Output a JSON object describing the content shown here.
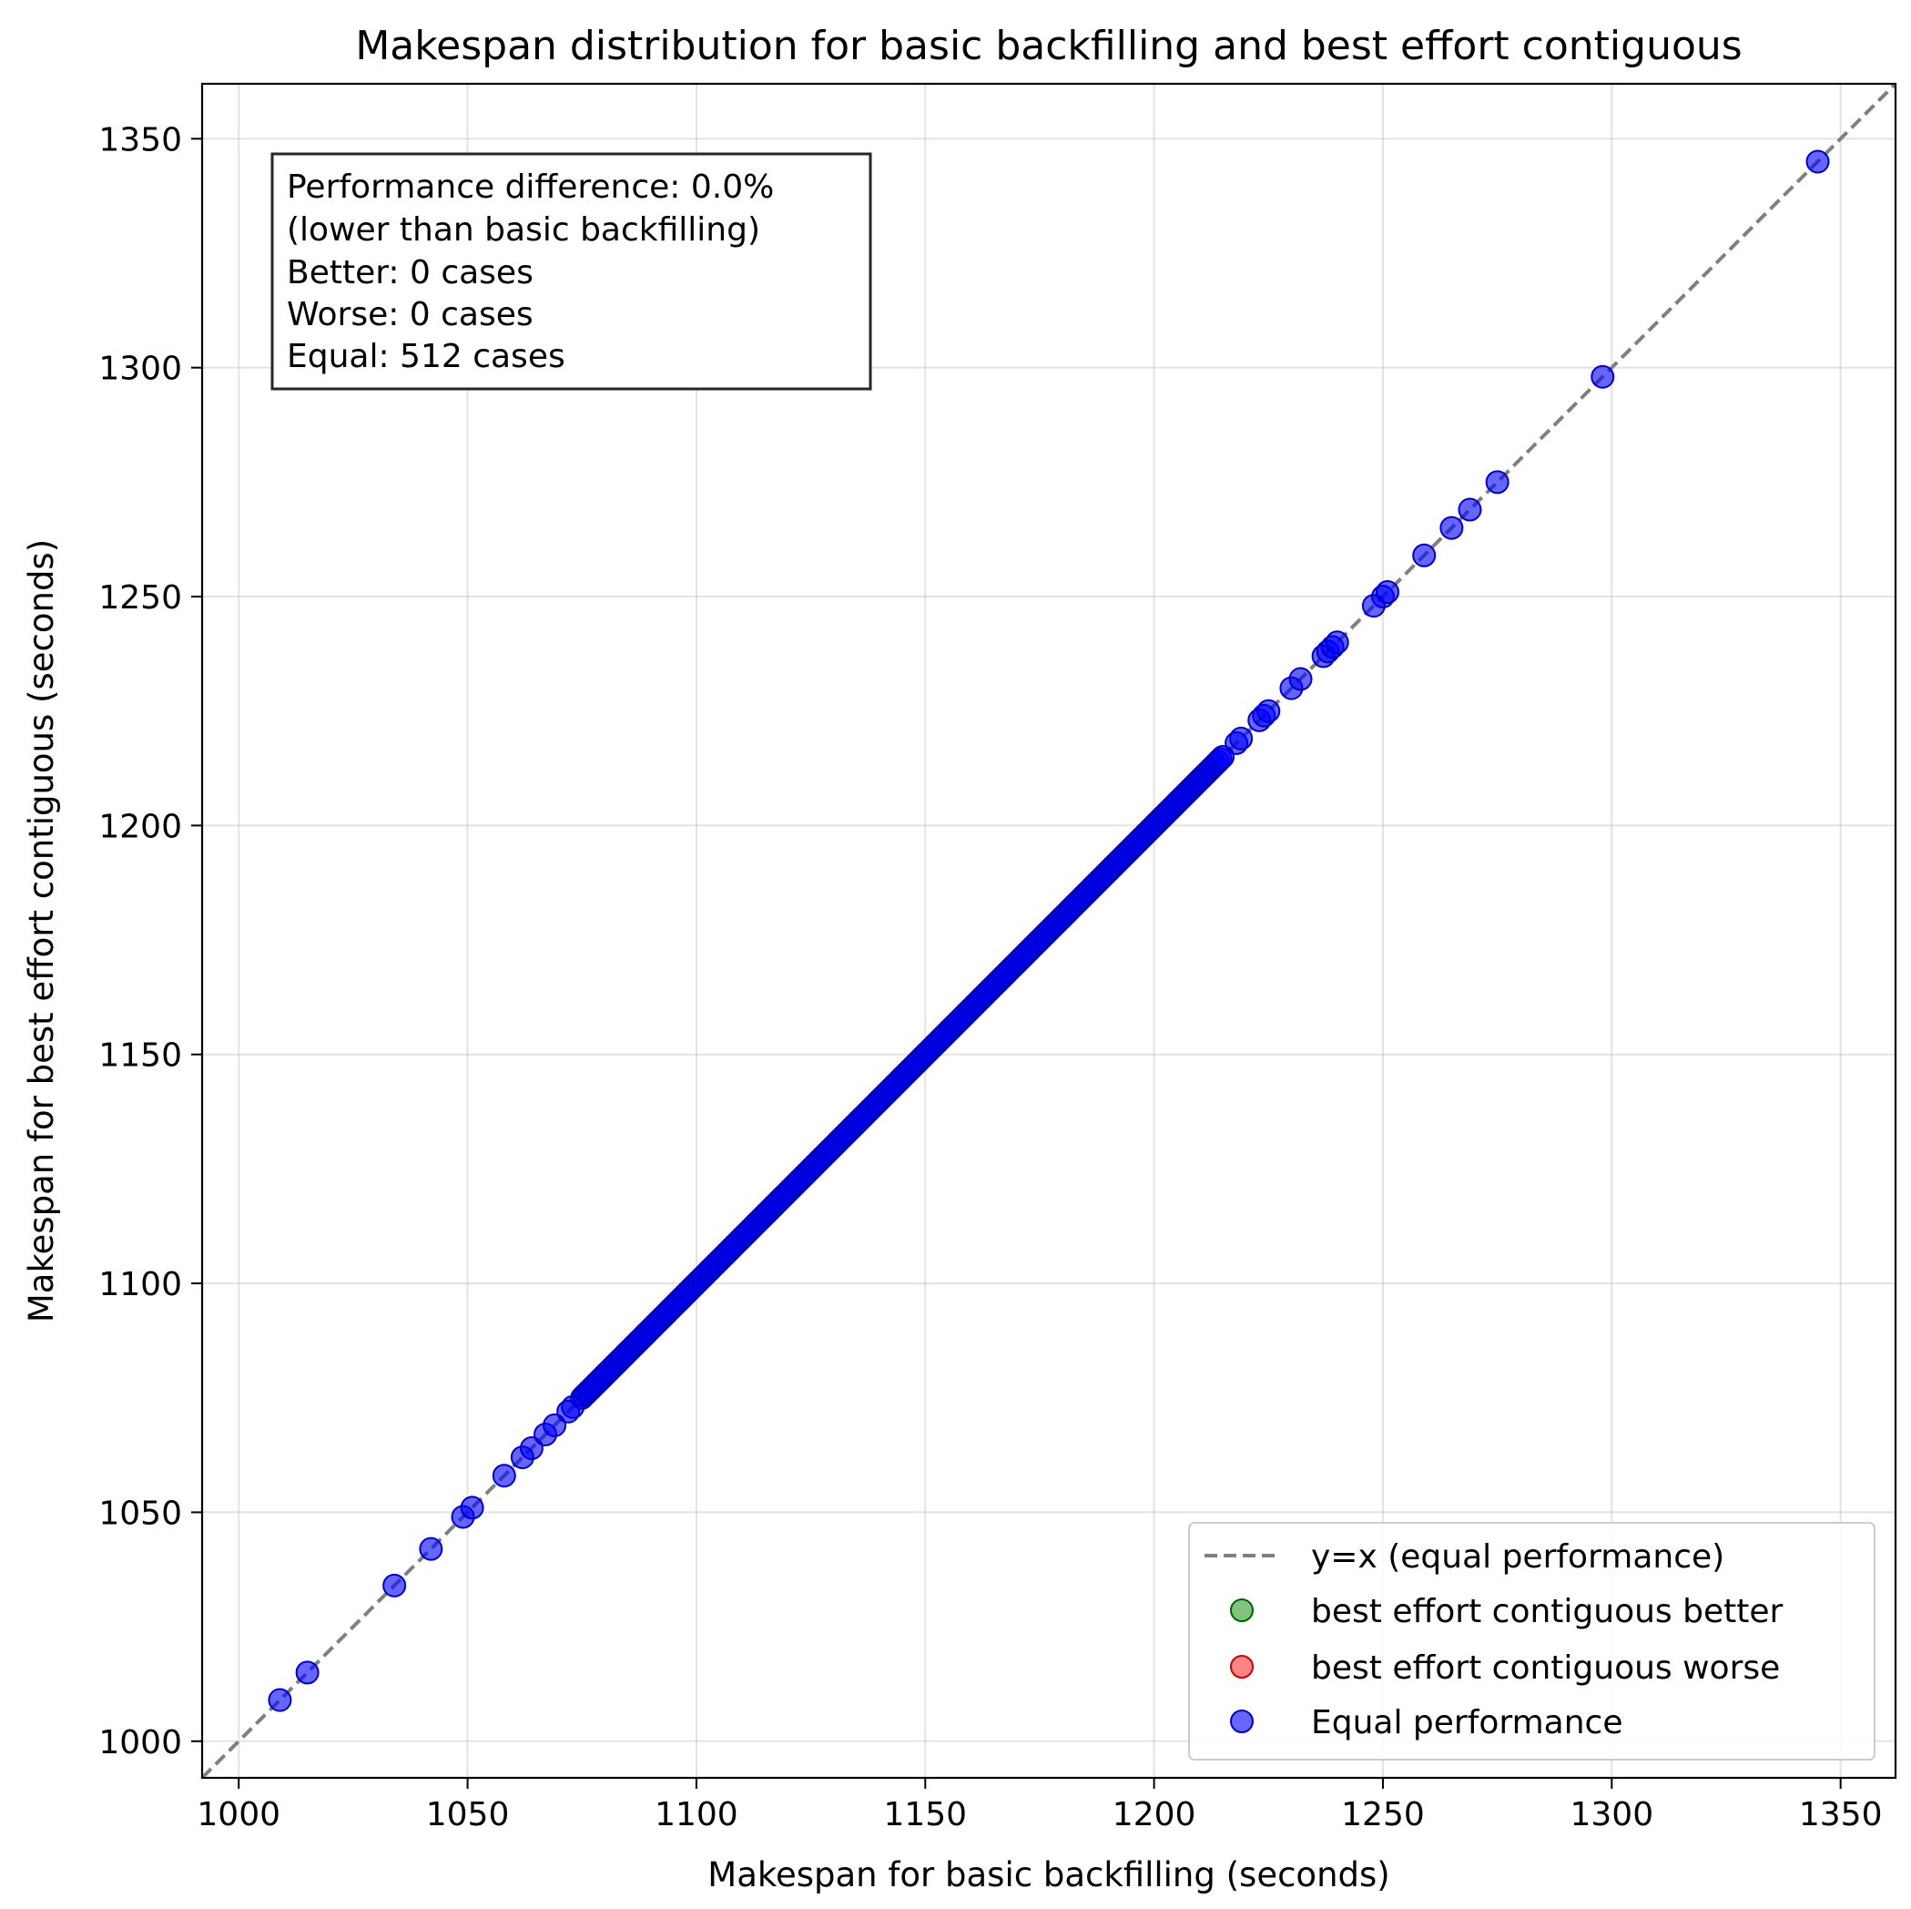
{
  "chart_data": {
    "type": "scatter",
    "title": "Makespan distribution for basic backfilling and best effort contiguous",
    "xlabel": "Makespan for basic backfilling (seconds)",
    "ylabel": "Makespan for best effort contiguous (seconds)",
    "xlim": [
      992,
      1362
    ],
    "ylim": [
      992,
      1362
    ],
    "xticks": [
      1000,
      1050,
      1100,
      1150,
      1200,
      1250,
      1300,
      1350
    ],
    "yticks": [
      1000,
      1050,
      1100,
      1150,
      1200,
      1250,
      1300,
      1350
    ],
    "grid": true,
    "legend_position": "lower-right",
    "reference_line": {
      "label": "y=x (equal performance)",
      "color": "#808080",
      "style": "dashed"
    },
    "series": [
      {
        "name": "best effort contiguous better",
        "color": "#2a9d2a",
        "points": []
      },
      {
        "name": "best effort contiguous worse",
        "color": "#ff3333",
        "points": []
      },
      {
        "name": "Equal performance",
        "color": "#0000ff",
        "dense_ranges": [
          [
            1075,
            1215
          ]
        ],
        "points": [
          1009,
          1015,
          1034,
          1042,
          1049,
          1051,
          1058,
          1062,
          1064,
          1067,
          1069,
          1072,
          1073,
          1218,
          1219,
          1223,
          1224,
          1225,
          1230,
          1232,
          1237,
          1238,
          1239,
          1240,
          1248,
          1250,
          1251,
          1259,
          1265,
          1269,
          1275,
          1298,
          1345
        ]
      }
    ],
    "annotation": [
      "Performance difference: 0.0%",
      "(lower than basic backfilling)",
      "Better: 0 cases",
      "Worse: 0 cases",
      "Equal: 512 cases"
    ]
  }
}
